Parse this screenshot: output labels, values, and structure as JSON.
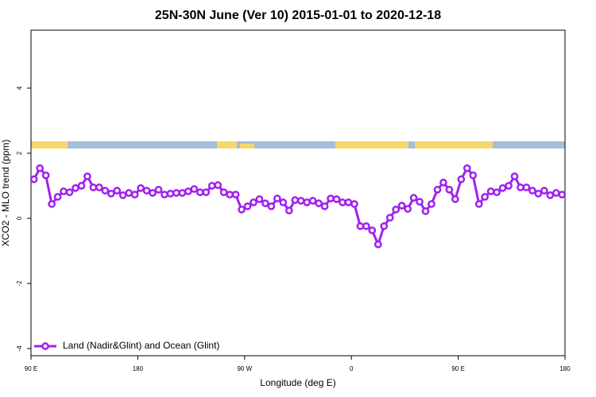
{
  "chart_data": {
    "type": "line",
    "title": "25N-30N June (Ver 10)   2015-01-01 to 2020-12-18",
    "x_label": "Longitude (deg E)",
    "y_label": "XCO2 - MLO trend (ppm)",
    "x": [
      92.5,
      97.5,
      102.5,
      107.5,
      112.5,
      117.5,
      122.5,
      127.5,
      132.5,
      137.5,
      142.5,
      147.5,
      152.5,
      157.5,
      162.5,
      167.5,
      172.5,
      177.5,
      182.5,
      187.5,
      192.5,
      197.5,
      202.5,
      207.5,
      212.5,
      217.5,
      222.5,
      227.5,
      232.5,
      237.5,
      242.5,
      247.5,
      252.5,
      257.5,
      262.5,
      267.5,
      272.5,
      277.5,
      282.5,
      287.5,
      292.5,
      297.5,
      302.5,
      307.5,
      312.5,
      317.5,
      322.5,
      327.5,
      332.5,
      337.5,
      342.5,
      347.5,
      352.5,
      357.5,
      362.5,
      367.5,
      372.5,
      377.5,
      382.5,
      387.5,
      392.5,
      397.5,
      402.5,
      407.5,
      412.5,
      417.5,
      422.5,
      427.5,
      432.5,
      437.5,
      442.5,
      447.5,
      452.5,
      457.5,
      462.5,
      467.5,
      472.5,
      477.5,
      482.5,
      487.5,
      492.5,
      497.5,
      502.5,
      507.5,
      512.5,
      517.5,
      522.5,
      527.5,
      532.5,
      537.5
    ],
    "series": [
      {
        "name": "Land (Nadir&Glint) and Ocean (Glint)",
        "color": "#a020f0",
        "values": [
          1.2,
          1.54,
          1.32,
          0.44,
          0.66,
          0.83,
          0.8,
          0.93,
          1.0,
          1.29,
          0.95,
          0.95,
          0.85,
          0.76,
          0.85,
          0.71,
          0.78,
          0.73,
          0.93,
          0.85,
          0.78,
          0.88,
          0.73,
          0.76,
          0.78,
          0.78,
          0.83,
          0.9,
          0.8,
          0.8,
          1.0,
          1.02,
          0.8,
          0.73,
          0.73,
          0.27,
          0.37,
          0.49,
          0.59,
          0.46,
          0.37,
          0.61,
          0.49,
          0.24,
          0.56,
          0.54,
          0.49,
          0.54,
          0.46,
          0.37,
          0.61,
          0.59,
          0.49,
          0.49,
          0.44,
          -0.24,
          -0.24,
          -0.37,
          -0.8,
          -0.24,
          0.02,
          0.27,
          0.39,
          0.29,
          0.63,
          0.51,
          0.22,
          0.44,
          0.88,
          1.1,
          0.88,
          0.59,
          1.2,
          1.54,
          1.32,
          0.44,
          0.66,
          0.83,
          0.8,
          0.93,
          1.0,
          1.29,
          0.95,
          0.95,
          0.85,
          0.76,
          0.85,
          0.71,
          0.78,
          0.73
        ]
      }
    ],
    "xlim": [
      90,
      540
    ],
    "xticks": [
      {
        "value": 90,
        "label": "90 E"
      },
      {
        "value": 180,
        "label": "180"
      },
      {
        "value": 270,
        "label": "90 W"
      },
      {
        "value": 360,
        "label": "0"
      },
      {
        "value": 450,
        "label": "90 E"
      },
      {
        "value": 540,
        "label": "180"
      }
    ],
    "ylim": [
      -4.22,
      5.78
    ],
    "yticks": [
      -4,
      -2,
      0,
      2,
      4
    ],
    "legend": "bottomleft"
  }
}
